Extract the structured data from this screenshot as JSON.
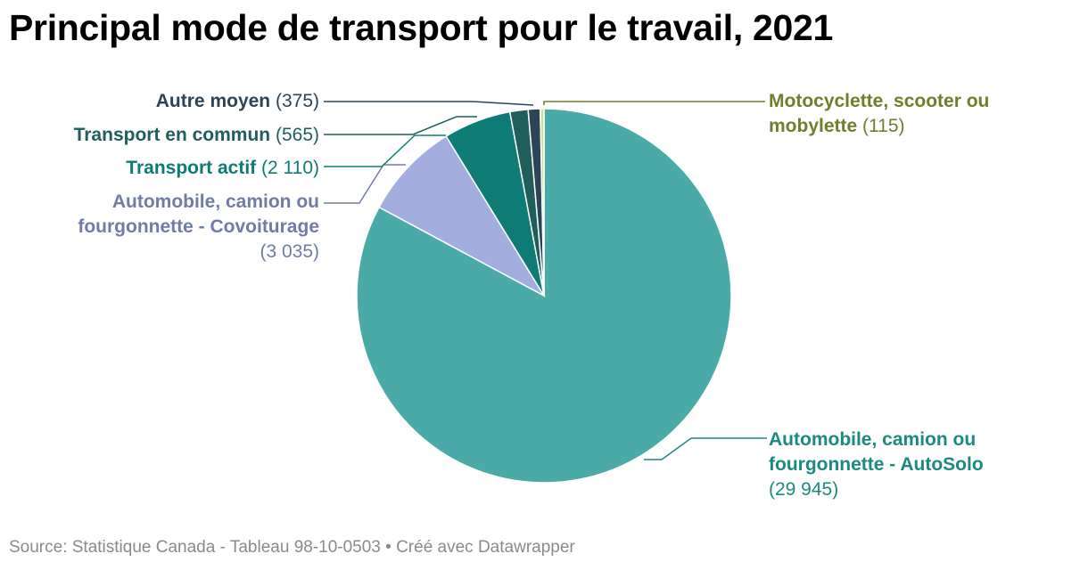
{
  "title": "Principal mode de transport pour le travail, 2021",
  "source": "Source: Statistique Canada - Tableau 98-10-0503 • Créé avec Datawrapper",
  "chart_data": {
    "type": "pie",
    "title": "Principal mode de transport pour le travail, 2021",
    "slices": [
      {
        "key": "autosolo",
        "line1": "Automobile, camion ou",
        "line2": "fourgonnette - AutoSolo",
        "value": 29945,
        "value_label": "(29 945)",
        "color": "#4aaaa8",
        "label_color": "#1b8a80"
      },
      {
        "key": "covoit",
        "line1": "Automobile, camion ou",
        "line2": "fourgonnette - Covoiturage",
        "value": 3035,
        "value_label": "(3 035)",
        "color": "#a3aedf",
        "label_color": "#717ba8"
      },
      {
        "key": "actif",
        "name": "Transport actif",
        "value": 2110,
        "value_label": "(2 110)",
        "color": "#0e7b74",
        "label_color": "#0e7b74"
      },
      {
        "key": "commun",
        "name": "Transport en commun",
        "value": 565,
        "value_label": "(565)",
        "color": "#1f5e5b",
        "label_color": "#1f5e5b"
      },
      {
        "key": "autre",
        "name": "Autre moyen",
        "value": 375,
        "value_label": "(375)",
        "color": "#2c4458",
        "label_color": "#2c4458"
      },
      {
        "key": "moto",
        "line1": "Motocyclette, scooter ou",
        "line2": "mobylette",
        "value": 115,
        "value_label": "(115)",
        "color": "#d6e08a",
        "label_color": "#6e7f2c"
      }
    ]
  }
}
